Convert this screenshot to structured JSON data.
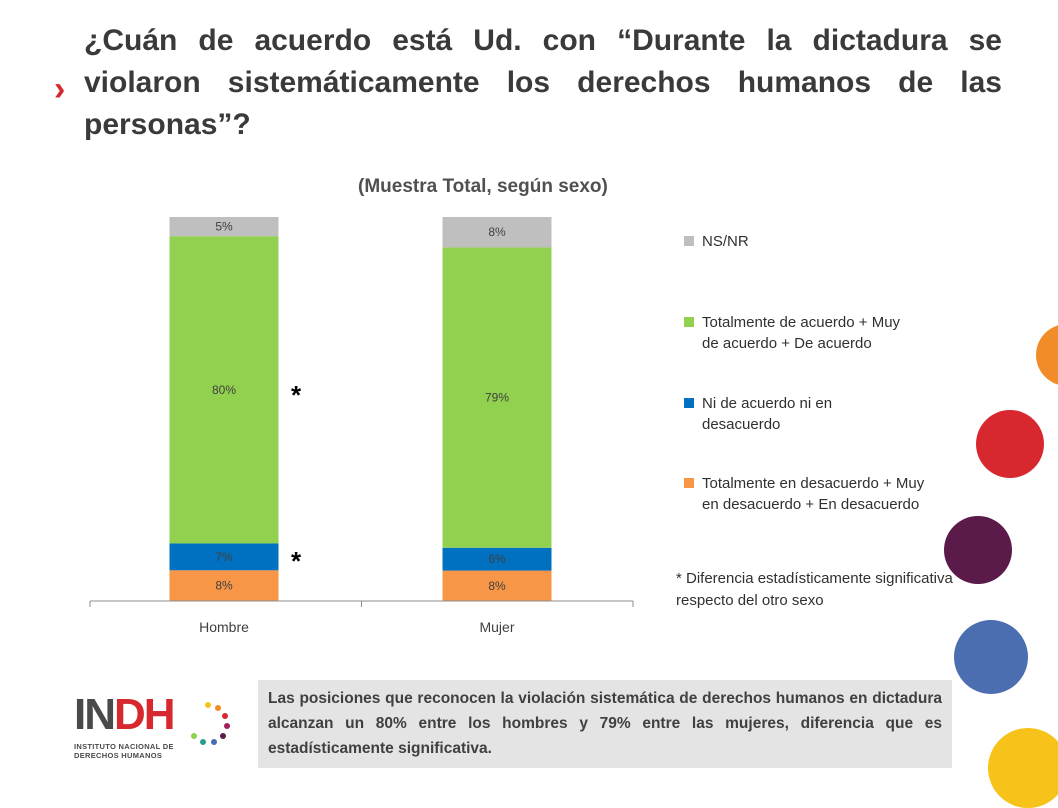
{
  "title": "¿Cuán de acuerdo está Ud. con “Durante la dictadura se violaron sistemáticamente los derechos humanos de las personas”?",
  "icons": {
    "chevron": "chevron-right-icon",
    "logo": "indh-logo"
  },
  "colors": {
    "accent": "#d7282f",
    "ns_nr": "#bfbfbf",
    "acuerdo": "#92d050",
    "ni": "#0070c0",
    "desacuerdo": "#f79646",
    "summary_bg": "#e4e4e4"
  },
  "chart_data": {
    "type": "bar",
    "stacked": true,
    "title": "(Muestra Total, según sexo)",
    "categories": [
      "Hombre",
      "Mujer"
    ],
    "series": [
      {
        "name": "Totalmente en desacuerdo + Muy en desacuerdo + En desacuerdo",
        "values": [
          8,
          8
        ],
        "labels": [
          "8%",
          "8%"
        ],
        "color": "#f79646"
      },
      {
        "name": "Ni de acuerdo ni en desacuerdo",
        "values": [
          7,
          6
        ],
        "labels": [
          "7%",
          "6%"
        ],
        "color": "#0070c0"
      },
      {
        "name": "Totalmente de acuerdo + Muy de acuerdo + De acuerdo",
        "values": [
          80,
          79
        ],
        "labels": [
          "80%",
          "79%"
        ],
        "color": "#92d050"
      },
      {
        "name": "NS/NR",
        "values": [
          5,
          8
        ],
        "labels": [
          "5%",
          "8%"
        ],
        "color": "#bfbfbf"
      }
    ],
    "legend": [
      "NS/NR",
      "Totalmente de acuerdo + Muy de acuerdo + De acuerdo",
      "Ni de acuerdo ni en desacuerdo",
      "Totalmente en desacuerdo + Muy en desacuerdo + En desacuerdo"
    ],
    "legend_position": "right",
    "grid": false,
    "significance_markers": [
      "*",
      "*"
    ],
    "note": "* Diferencia estadísticamente significativa respecto del otro sexo"
  },
  "legend_labels": {
    "ns_nr": "NS/NR",
    "acuerdo": "Totalmente de acuerdo + Muy de acuerdo + De acuerdo",
    "ni": "Ni de acuerdo ni en desacuerdo",
    "desacuerdo": "Totalmente en desacuerdo + Muy en desacuerdo + En desacuerdo"
  },
  "logo": {
    "name_part1": "IN",
    "name_part2": "DH",
    "line1": "INSTITUTO NACIONAL DE",
    "line2": "DERECHOS HUMANOS"
  },
  "summary": "Las posiciones que reconocen la violación sistemática de derechos humanos en dictadura alcanzan un 80% entre los hombres y 79% entre las mujeres, diferencia que es estadísticamente significativa.",
  "decor_colors": [
    "#f28c28",
    "#d7282f",
    "#5a1a4a",
    "#4a6eb0",
    "#f7c31a"
  ]
}
